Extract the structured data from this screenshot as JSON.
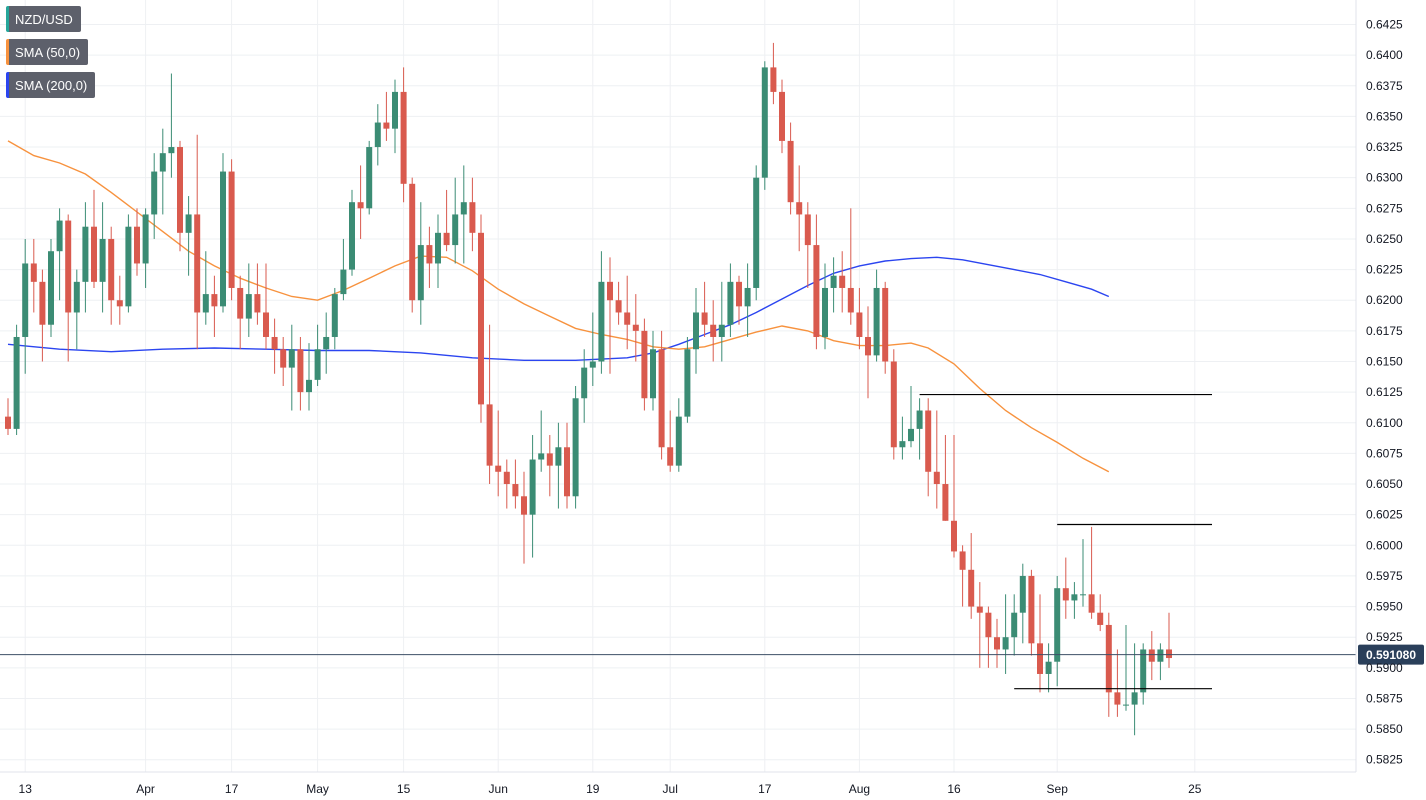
{
  "chart_data": {
    "type": "candlestick",
    "symbol": "NZD/USD",
    "legend": [
      {
        "label": "NZD/USD",
        "color": "#26a69a"
      },
      {
        "label": "SMA (50,0)",
        "color": "#f7923e"
      },
      {
        "label": "SMA (200,0)",
        "color": "#2b45f0"
      }
    ],
    "colors": {
      "up": "#26a69a",
      "down": "#ef5350",
      "up_body": "#3b8c74",
      "down_body": "#d95a4e",
      "sma50": "#f7923e",
      "sma200": "#2b45f0",
      "price_line": "#3d4f66",
      "price_label_bg": "#2a3f5a",
      "levels": "#000000"
    },
    "y_axis": {
      "range": [
        0.5815,
        0.6445
      ],
      "ticks": [
        "0.5825",
        "0.5850",
        "0.5875",
        "0.5900",
        "0.5925",
        "0.5950",
        "0.5975",
        "0.6000",
        "0.6025",
        "0.6050",
        "0.6075",
        "0.6100",
        "0.6125",
        "0.6150",
        "0.6175",
        "0.6200",
        "0.6225",
        "0.6250",
        "0.6275",
        "0.6300",
        "0.6325",
        "0.6350",
        "0.6375",
        "0.6400",
        "0.6425"
      ]
    },
    "x_axis": {
      "labels": [
        {
          "text": "13",
          "index": 2
        },
        {
          "text": "Apr",
          "index": 16
        },
        {
          "text": "17",
          "index": 26
        },
        {
          "text": "May",
          "index": 36
        },
        {
          "text": "15",
          "index": 46
        },
        {
          "text": "Jun",
          "index": 57
        },
        {
          "text": "19",
          "index": 68
        },
        {
          "text": "Jul",
          "index": 77
        },
        {
          "text": "17",
          "index": 88
        },
        {
          "text": "Aug",
          "index": 99
        },
        {
          "text": "16",
          "index": 110
        },
        {
          "text": "Sep",
          "index": 122
        },
        {
          "text": "25",
          "index": 138
        }
      ]
    },
    "current_price": 0.59108,
    "current_price_label": "0.591080",
    "levels": [
      {
        "value": 0.6123,
        "from_index": 106,
        "to_index": 140
      },
      {
        "value": 0.6017,
        "from_index": 122,
        "to_index": 140
      },
      {
        "value": 0.5883,
        "from_index": 117,
        "to_index": 140
      }
    ],
    "candles": [
      [
        0.6105,
        0.612,
        0.609,
        0.6095
      ],
      [
        0.6095,
        0.618,
        0.609,
        0.617
      ],
      [
        0.617,
        0.625,
        0.614,
        0.623
      ],
      [
        0.623,
        0.625,
        0.619,
        0.6215
      ],
      [
        0.6215,
        0.6225,
        0.615,
        0.618
      ],
      [
        0.618,
        0.625,
        0.617,
        0.624
      ],
      [
        0.624,
        0.6275,
        0.62,
        0.6265
      ],
      [
        0.6265,
        0.627,
        0.615,
        0.619
      ],
      [
        0.619,
        0.6225,
        0.616,
        0.6215
      ],
      [
        0.6215,
        0.628,
        0.619,
        0.626
      ],
      [
        0.626,
        0.629,
        0.621,
        0.6215
      ],
      [
        0.6215,
        0.628,
        0.619,
        0.625
      ],
      [
        0.625,
        0.626,
        0.618,
        0.62
      ],
      [
        0.62,
        0.622,
        0.618,
        0.6195
      ],
      [
        0.6195,
        0.627,
        0.619,
        0.626
      ],
      [
        0.626,
        0.6275,
        0.622,
        0.623
      ],
      [
        0.623,
        0.6275,
        0.621,
        0.627
      ],
      [
        0.627,
        0.632,
        0.625,
        0.6305
      ],
      [
        0.6305,
        0.634,
        0.627,
        0.632
      ],
      [
        0.632,
        0.6385,
        0.63,
        0.6325
      ],
      [
        0.6325,
        0.633,
        0.624,
        0.6255
      ],
      [
        0.6255,
        0.6285,
        0.622,
        0.627
      ],
      [
        0.627,
        0.6335,
        0.616,
        0.619
      ],
      [
        0.619,
        0.624,
        0.618,
        0.6205
      ],
      [
        0.6205,
        0.622,
        0.617,
        0.6195
      ],
      [
        0.6195,
        0.632,
        0.619,
        0.6305
      ],
      [
        0.6305,
        0.6315,
        0.62,
        0.621
      ],
      [
        0.621,
        0.622,
        0.616,
        0.6185
      ],
      [
        0.6185,
        0.623,
        0.617,
        0.6205
      ],
      [
        0.6205,
        0.623,
        0.618,
        0.619
      ],
      [
        0.619,
        0.623,
        0.616,
        0.617
      ],
      [
        0.617,
        0.6185,
        0.614,
        0.616
      ],
      [
        0.616,
        0.617,
        0.613,
        0.6145
      ],
      [
        0.6145,
        0.618,
        0.611,
        0.616
      ],
      [
        0.616,
        0.617,
        0.611,
        0.6125
      ],
      [
        0.6125,
        0.6165,
        0.611,
        0.6135
      ],
      [
        0.6135,
        0.618,
        0.613,
        0.616
      ],
      [
        0.616,
        0.619,
        0.614,
        0.617
      ],
      [
        0.617,
        0.621,
        0.616,
        0.6205
      ],
      [
        0.6205,
        0.625,
        0.62,
        0.6225
      ],
      [
        0.6225,
        0.629,
        0.622,
        0.628
      ],
      [
        0.628,
        0.631,
        0.625,
        0.6275
      ],
      [
        0.6275,
        0.633,
        0.627,
        0.6325
      ],
      [
        0.6325,
        0.636,
        0.631,
        0.6345
      ],
      [
        0.6345,
        0.637,
        0.633,
        0.634
      ],
      [
        0.634,
        0.638,
        0.632,
        0.637
      ],
      [
        0.637,
        0.639,
        0.628,
        0.6295
      ],
      [
        0.6295,
        0.63,
        0.619,
        0.62
      ],
      [
        0.62,
        0.628,
        0.618,
        0.6245
      ],
      [
        0.6245,
        0.626,
        0.621,
        0.623
      ],
      [
        0.623,
        0.627,
        0.621,
        0.6255
      ],
      [
        0.6255,
        0.629,
        0.624,
        0.6245
      ],
      [
        0.6245,
        0.63,
        0.623,
        0.627
      ],
      [
        0.627,
        0.631,
        0.623,
        0.628
      ],
      [
        0.628,
        0.63,
        0.624,
        0.6255
      ],
      [
        0.6255,
        0.627,
        0.61,
        0.6115
      ],
      [
        0.6115,
        0.618,
        0.605,
        0.6065
      ],
      [
        0.6065,
        0.611,
        0.604,
        0.606
      ],
      [
        0.606,
        0.607,
        0.603,
        0.605
      ],
      [
        0.605,
        0.607,
        0.603,
        0.604
      ],
      [
        0.604,
        0.606,
        0.5985,
        0.6025
      ],
      [
        0.6025,
        0.609,
        0.599,
        0.607
      ],
      [
        0.607,
        0.611,
        0.606,
        0.6075
      ],
      [
        0.6075,
        0.609,
        0.604,
        0.6065
      ],
      [
        0.6065,
        0.61,
        0.603,
        0.608
      ],
      [
        0.608,
        0.61,
        0.603,
        0.604
      ],
      [
        0.604,
        0.613,
        0.603,
        0.612
      ],
      [
        0.612,
        0.616,
        0.61,
        0.6145
      ],
      [
        0.6145,
        0.619,
        0.613,
        0.615
      ],
      [
        0.615,
        0.624,
        0.614,
        0.6215
      ],
      [
        0.6215,
        0.6235,
        0.614,
        0.62
      ],
      [
        0.62,
        0.6215,
        0.618,
        0.619
      ],
      [
        0.619,
        0.622,
        0.616,
        0.618
      ],
      [
        0.618,
        0.6205,
        0.615,
        0.6175
      ],
      [
        0.6175,
        0.6185,
        0.611,
        0.612
      ],
      [
        0.612,
        0.6175,
        0.611,
        0.616
      ],
      [
        0.616,
        0.6175,
        0.607,
        0.608
      ],
      [
        0.608,
        0.611,
        0.606,
        0.6065
      ],
      [
        0.6065,
        0.612,
        0.606,
        0.6105
      ],
      [
        0.6105,
        0.617,
        0.61,
        0.616
      ],
      [
        0.616,
        0.621,
        0.614,
        0.619
      ],
      [
        0.619,
        0.6215,
        0.617,
        0.618
      ],
      [
        0.618,
        0.62,
        0.615,
        0.617
      ],
      [
        0.617,
        0.6215,
        0.615,
        0.618
      ],
      [
        0.618,
        0.623,
        0.617,
        0.6215
      ],
      [
        0.6215,
        0.622,
        0.618,
        0.6195
      ],
      [
        0.6195,
        0.623,
        0.617,
        0.621
      ],
      [
        0.621,
        0.631,
        0.62,
        0.63
      ],
      [
        0.63,
        0.6395,
        0.629,
        0.639
      ],
      [
        0.639,
        0.641,
        0.636,
        0.637
      ],
      [
        0.637,
        0.638,
        0.632,
        0.633
      ],
      [
        0.633,
        0.6345,
        0.627,
        0.628
      ],
      [
        0.628,
        0.631,
        0.624,
        0.627
      ],
      [
        0.627,
        0.628,
        0.621,
        0.6245
      ],
      [
        0.6245,
        0.627,
        0.616,
        0.617
      ],
      [
        0.617,
        0.623,
        0.616,
        0.621
      ],
      [
        0.621,
        0.6235,
        0.619,
        0.622
      ],
      [
        0.622,
        0.624,
        0.619,
        0.621
      ],
      [
        0.621,
        0.6275,
        0.618,
        0.619
      ],
      [
        0.619,
        0.621,
        0.616,
        0.617
      ],
      [
        0.617,
        0.6195,
        0.612,
        0.6155
      ],
      [
        0.6155,
        0.6225,
        0.615,
        0.621
      ],
      [
        0.621,
        0.6215,
        0.614,
        0.615
      ],
      [
        0.615,
        0.616,
        0.607,
        0.608
      ],
      [
        0.608,
        0.6105,
        0.607,
        0.6085
      ],
      [
        0.6085,
        0.613,
        0.608,
        0.6095
      ],
      [
        0.6095,
        0.612,
        0.607,
        0.611
      ],
      [
        0.611,
        0.612,
        0.604,
        0.606
      ],
      [
        0.606,
        0.611,
        0.603,
        0.605
      ],
      [
        0.605,
        0.609,
        0.602,
        0.602
      ],
      [
        0.602,
        0.609,
        0.599,
        0.5995
      ],
      [
        0.5995,
        0.6,
        0.595,
        0.598
      ],
      [
        0.598,
        0.601,
        0.594,
        0.595
      ],
      [
        0.595,
        0.597,
        0.59,
        0.5945
      ],
      [
        0.5945,
        0.595,
        0.59,
        0.5925
      ],
      [
        0.5925,
        0.594,
        0.59,
        0.5915
      ],
      [
        0.5915,
        0.596,
        0.5895,
        0.5925
      ],
      [
        0.5925,
        0.596,
        0.591,
        0.5945
      ],
      [
        0.5945,
        0.5985,
        0.592,
        0.5975
      ],
      [
        0.5975,
        0.598,
        0.591,
        0.592
      ],
      [
        0.592,
        0.596,
        0.588,
        0.5895
      ],
      [
        0.5895,
        0.592,
        0.588,
        0.5905
      ],
      [
        0.5905,
        0.5975,
        0.5885,
        0.5965
      ],
      [
        0.5965,
        0.599,
        0.594,
        0.5955
      ],
      [
        0.5955,
        0.597,
        0.594,
        0.596
      ],
      [
        0.596,
        0.6005,
        0.595,
        0.596
      ],
      [
        0.596,
        0.6015,
        0.594,
        0.5945
      ],
      [
        0.5945,
        0.596,
        0.593,
        0.5935
      ],
      [
        0.5935,
        0.5945,
        0.586,
        0.588
      ],
      [
        0.588,
        0.5915,
        0.586,
        0.587
      ],
      [
        0.587,
        0.5935,
        0.5865,
        0.587
      ],
      [
        0.587,
        0.592,
        0.5845,
        0.588
      ],
      [
        0.588,
        0.592,
        0.587,
        0.5915
      ],
      [
        0.5915,
        0.593,
        0.589,
        0.5905
      ],
      [
        0.5905,
        0.592,
        0.589,
        0.5915
      ],
      [
        0.5915,
        0.5945,
        0.59,
        0.5908
      ]
    ],
    "sma50": [
      [
        0,
        0.633
      ],
      [
        3,
        0.6318
      ],
      [
        6,
        0.6312
      ],
      [
        9,
        0.6303
      ],
      [
        12,
        0.6288
      ],
      [
        15,
        0.6272
      ],
      [
        18,
        0.6256
      ],
      [
        21,
        0.624
      ],
      [
        24,
        0.6228
      ],
      [
        27,
        0.6218
      ],
      [
        30,
        0.621
      ],
      [
        33,
        0.6203
      ],
      [
        36,
        0.62
      ],
      [
        39,
        0.6208
      ],
      [
        42,
        0.6218
      ],
      [
        45,
        0.6228
      ],
      [
        48,
        0.6236
      ],
      [
        51,
        0.6235
      ],
      [
        54,
        0.6224
      ],
      [
        57,
        0.6209
      ],
      [
        60,
        0.6197
      ],
      [
        63,
        0.6187
      ],
      [
        66,
        0.6177
      ],
      [
        69,
        0.6172
      ],
      [
        72,
        0.6168
      ],
      [
        75,
        0.6162
      ],
      [
        78,
        0.616
      ],
      [
        81,
        0.6162
      ],
      [
        84,
        0.6168
      ],
      [
        87,
        0.6174
      ],
      [
        90,
        0.6179
      ],
      [
        93,
        0.6175
      ],
      [
        96,
        0.6167
      ],
      [
        99,
        0.6163
      ],
      [
        102,
        0.6163
      ],
      [
        105,
        0.6165
      ],
      [
        107,
        0.6161
      ],
      [
        110,
        0.6148
      ],
      [
        113,
        0.6128
      ],
      [
        116,
        0.611
      ],
      [
        119,
        0.6096
      ],
      [
        122,
        0.6084
      ],
      [
        125,
        0.6071
      ],
      [
        128,
        0.606
      ]
    ],
    "sma200": [
      [
        0,
        0.6164
      ],
      [
        6,
        0.616
      ],
      [
        12,
        0.6158
      ],
      [
        18,
        0.616
      ],
      [
        24,
        0.6161
      ],
      [
        30,
        0.616
      ],
      [
        36,
        0.6159
      ],
      [
        42,
        0.6159
      ],
      [
        48,
        0.6157
      ],
      [
        54,
        0.6153
      ],
      [
        60,
        0.6151
      ],
      [
        66,
        0.6151
      ],
      [
        72,
        0.6153
      ],
      [
        75,
        0.6157
      ],
      [
        78,
        0.6164
      ],
      [
        81,
        0.6172
      ],
      [
        84,
        0.618
      ],
      [
        87,
        0.619
      ],
      [
        90,
        0.6201
      ],
      [
        93,
        0.6212
      ],
      [
        96,
        0.6222
      ],
      [
        99,
        0.6228
      ],
      [
        102,
        0.6232
      ],
      [
        105,
        0.6234
      ],
      [
        108,
        0.6235
      ],
      [
        111,
        0.6233
      ],
      [
        114,
        0.6229
      ],
      [
        117,
        0.6225
      ],
      [
        120,
        0.6221
      ],
      [
        123,
        0.6215
      ],
      [
        126,
        0.6209
      ],
      [
        128,
        0.6203
      ]
    ]
  }
}
